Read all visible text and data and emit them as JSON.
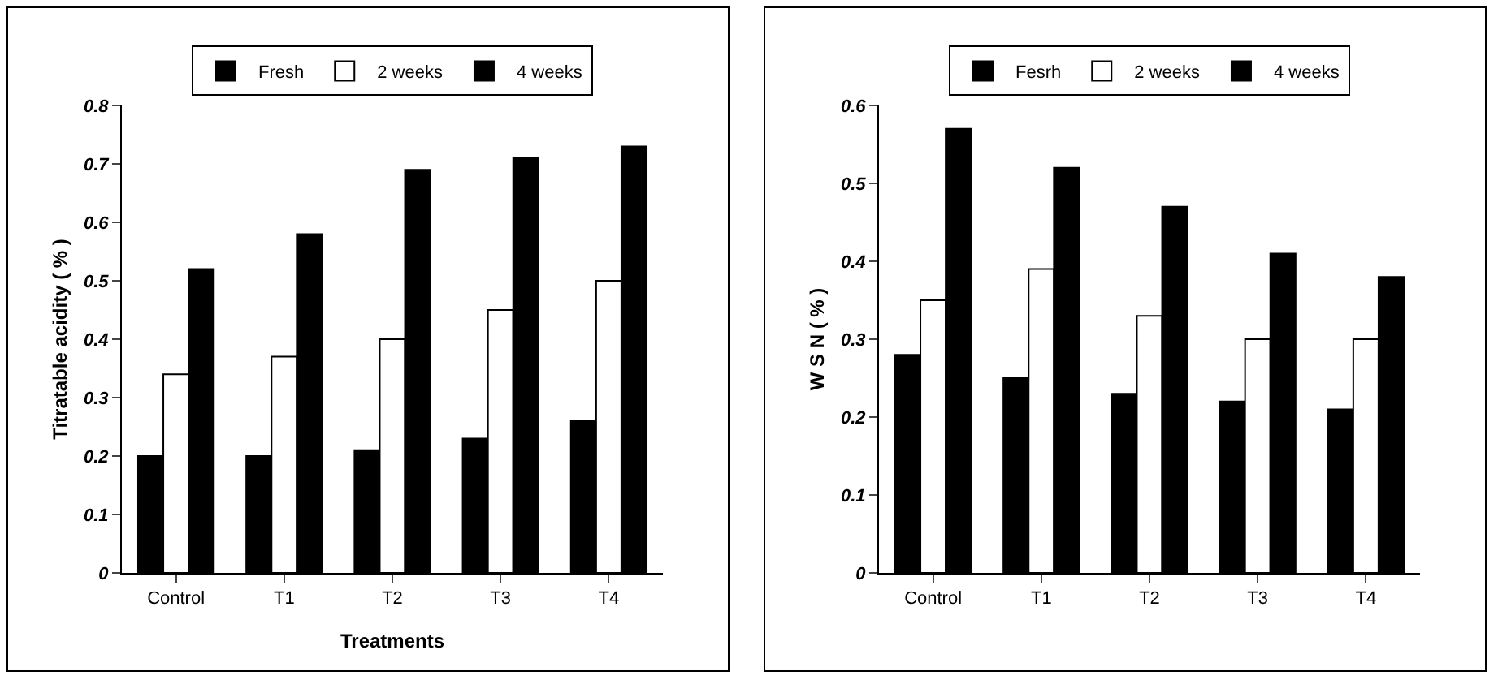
{
  "chart_data": [
    {
      "type": "bar",
      "xlabel": "Treatments",
      "ylabel": "Titratable acidity ( % )",
      "categories": [
        "Control",
        "T1",
        "T2",
        "T3",
        "T4"
      ],
      "series": [
        {
          "name": "Fresh",
          "color": "#000000",
          "values": [
            0.2,
            0.2,
            0.21,
            0.23,
            0.26
          ]
        },
        {
          "name": "2 weeks",
          "color": "#ffffff",
          "values": [
            0.34,
            0.37,
            0.4,
            0.45,
            0.5
          ]
        },
        {
          "name": "4 weeks",
          "color": "#000000",
          "values": [
            0.52,
            0.58,
            0.69,
            0.71,
            0.73
          ]
        }
      ],
      "ylim": [
        0,
        0.8
      ],
      "yticks": [
        0,
        0.1,
        0.2,
        0.3,
        0.4,
        0.5,
        0.6,
        0.7,
        0.8
      ],
      "grid": false,
      "legend": "top"
    },
    {
      "type": "bar",
      "ylabel": "W S N ( % )",
      "categories": [
        "Control",
        "T1",
        "T2",
        "T3",
        "T4"
      ],
      "series": [
        {
          "name": "Fesrh",
          "color": "#000000",
          "values": [
            0.28,
            0.25,
            0.23,
            0.22,
            0.21
          ]
        },
        {
          "name": "2 weeks",
          "color": "#ffffff",
          "values": [
            0.35,
            0.39,
            0.33,
            0.3,
            0.3
          ]
        },
        {
          "name": "4 weeks",
          "color": "#000000",
          "values": [
            0.57,
            0.52,
            0.47,
            0.41,
            0.38
          ]
        }
      ],
      "ylim": [
        0,
        0.6
      ],
      "yticks": [
        0,
        0.1,
        0.2,
        0.3,
        0.4,
        0.5,
        0.6
      ],
      "grid": false,
      "legend": "top"
    }
  ]
}
